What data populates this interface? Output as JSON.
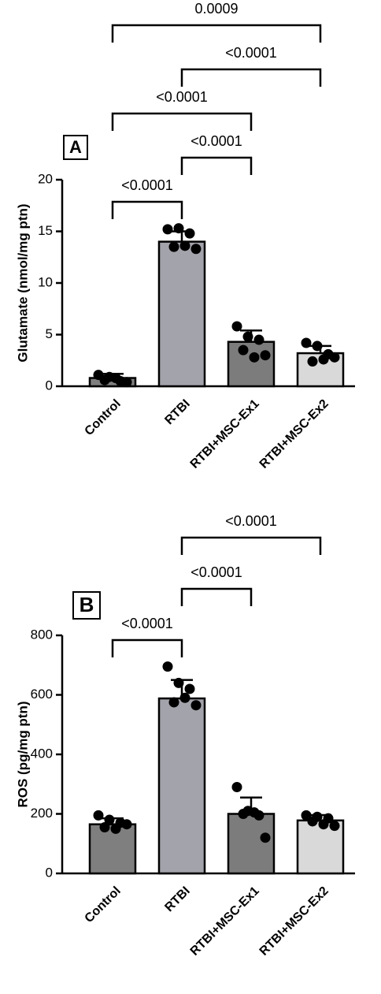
{
  "chart_data": [
    {
      "type": "bar",
      "panel_label": "A",
      "y_label": "Glutamate (nmol/mg ptn)",
      "categories": [
        "Control",
        "RTBI",
        "RTBI+MSC-Ex1",
        "RTBI+MSC-Ex2"
      ],
      "colors": [
        "#7f7f7f",
        "#a3a3ab",
        "#7c7c7c",
        "#d9d9d9"
      ],
      "values": [
        0.8,
        14.0,
        4.3,
        3.2
      ],
      "errors": [
        0.4,
        1.0,
        1.1,
        0.7
      ],
      "points": [
        [
          1.1,
          0.9,
          0.5,
          0.6,
          0.8,
          0.4
        ],
        [
          15.2,
          15.3,
          14.8,
          13.5,
          13.6,
          13.3
        ],
        [
          5.8,
          4.8,
          4.5,
          3.5,
          2.8,
          3.0
        ],
        [
          4.2,
          3.9,
          3.1,
          2.4,
          2.6,
          2.8
        ]
      ],
      "ylim": [
        0,
        20
      ],
      "yticks": [
        0,
        5,
        10,
        15,
        20
      ],
      "brackets": [
        {
          "pair": [
            "Control",
            "RTBI"
          ],
          "label": "<0.0001"
        },
        {
          "pair": [
            "RTBI",
            "RTBI+MSC-Ex1"
          ],
          "label": "<0.0001"
        },
        {
          "pair": [
            "Control",
            "RTBI+MSC-Ex1"
          ],
          "label": "<0.0001"
        },
        {
          "pair": [
            "RTBI",
            "RTBI+MSC-Ex2"
          ],
          "label": "<0.0001"
        },
        {
          "pair": [
            "Control",
            "RTBI+MSC-Ex2"
          ],
          "label": "0.0009"
        }
      ]
    },
    {
      "type": "bar",
      "panel_label": "B",
      "y_label": "ROS (pg/mg ptn)",
      "categories": [
        "Control",
        "RTBI",
        "RTBI+MSC-Ex1",
        "RTBI+MSC-Ex2"
      ],
      "colors": [
        "#7f7f7f",
        "#a3a3ab",
        "#7c7c7c",
        "#d9d9d9"
      ],
      "values": [
        165,
        588,
        200,
        178
      ],
      "errors": [
        20,
        62,
        55,
        18
      ],
      "points": [
        [
          195,
          180,
          170,
          155,
          150,
          165
        ],
        [
          695,
          640,
          620,
          575,
          590,
          565
        ],
        [
          290,
          210,
          195,
          200,
          205,
          120
        ],
        [
          195,
          190,
          185,
          175,
          165,
          160
        ]
      ],
      "ylim": [
        0,
        800
      ],
      "yticks": [
        0,
        200,
        400,
        600,
        800
      ],
      "brackets": [
        {
          "pair": [
            "Control",
            "RTBI"
          ],
          "label": "<0.0001"
        },
        {
          "pair": [
            "RTBI",
            "RTBI+MSC-Ex1"
          ],
          "label": "<0.0001"
        },
        {
          "pair": [
            "RTBI",
            "RTBI+MSC-Ex2"
          ],
          "label": "<0.0001"
        }
      ]
    }
  ]
}
